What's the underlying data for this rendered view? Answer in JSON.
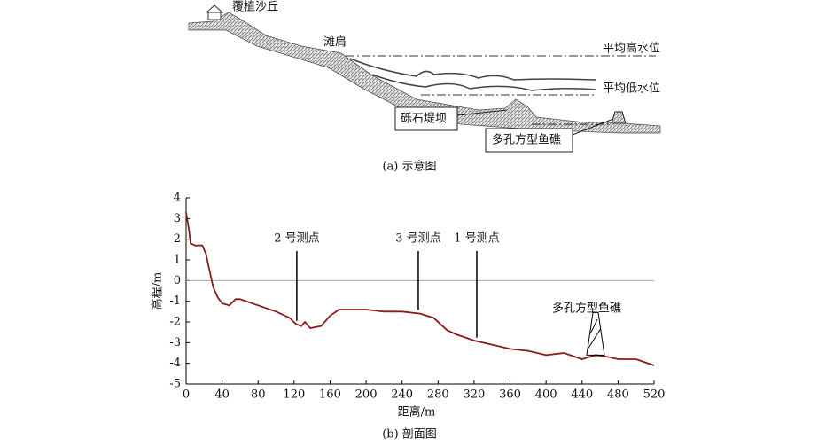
{
  "diagram": {
    "labels": [
      "覆植沙丘",
      "滩肩",
      "平均高水位",
      "平均低水位",
      "砾石堤坝",
      "多孔方型鱼礁"
    ],
    "caption": "(a) 示意图"
  },
  "chart_data": {
    "type": "line",
    "caption": "(b) 剖面图",
    "x_label": "距离/m",
    "y_label": "高程/m",
    "x": [
      0,
      3,
      5,
      10,
      18,
      22,
      26,
      30,
      35,
      40,
      48,
      55,
      60,
      80,
      100,
      115,
      122,
      128,
      132,
      138,
      150,
      160,
      170,
      180,
      200,
      220,
      240,
      260,
      275,
      290,
      300,
      320,
      340,
      360,
      380,
      400,
      420,
      440,
      455,
      470,
      480,
      500,
      520
    ],
    "values": [
      3.3,
      2.5,
      1.8,
      1.7,
      1.7,
      1.3,
      0.5,
      -0.3,
      -0.8,
      -1.1,
      -1.2,
      -0.9,
      -0.9,
      -1.2,
      -1.5,
      -1.8,
      -2.1,
      -2.2,
      -2.0,
      -2.3,
      -2.2,
      -1.7,
      -1.4,
      -1.4,
      -1.4,
      -1.5,
      -1.5,
      -1.6,
      -1.8,
      -2.4,
      -2.6,
      -2.9,
      -3.1,
      -3.3,
      -3.4,
      -3.6,
      -3.5,
      -3.8,
      -3.6,
      -3.7,
      -3.8,
      -3.8,
      -4.1
    ],
    "color": "#8b1a1a",
    "xlim": [
      0,
      520
    ],
    "xticks": [
      0,
      40,
      80,
      120,
      160,
      200,
      240,
      280,
      320,
      360,
      400,
      440,
      480,
      520
    ],
    "ylim": [
      -5,
      4
    ],
    "yticks": [
      -5,
      -4,
      -3,
      -2,
      -1,
      0,
      1,
      2,
      3,
      4
    ],
    "annotations": [
      {
        "label": "2 号测点",
        "x": 123
      },
      {
        "label": "3 号测点",
        "x": 258
      },
      {
        "label": "1 号测点",
        "x": 323
      }
    ],
    "reef": {
      "label": "多孔方型鱼礁",
      "x": 455
    }
  }
}
